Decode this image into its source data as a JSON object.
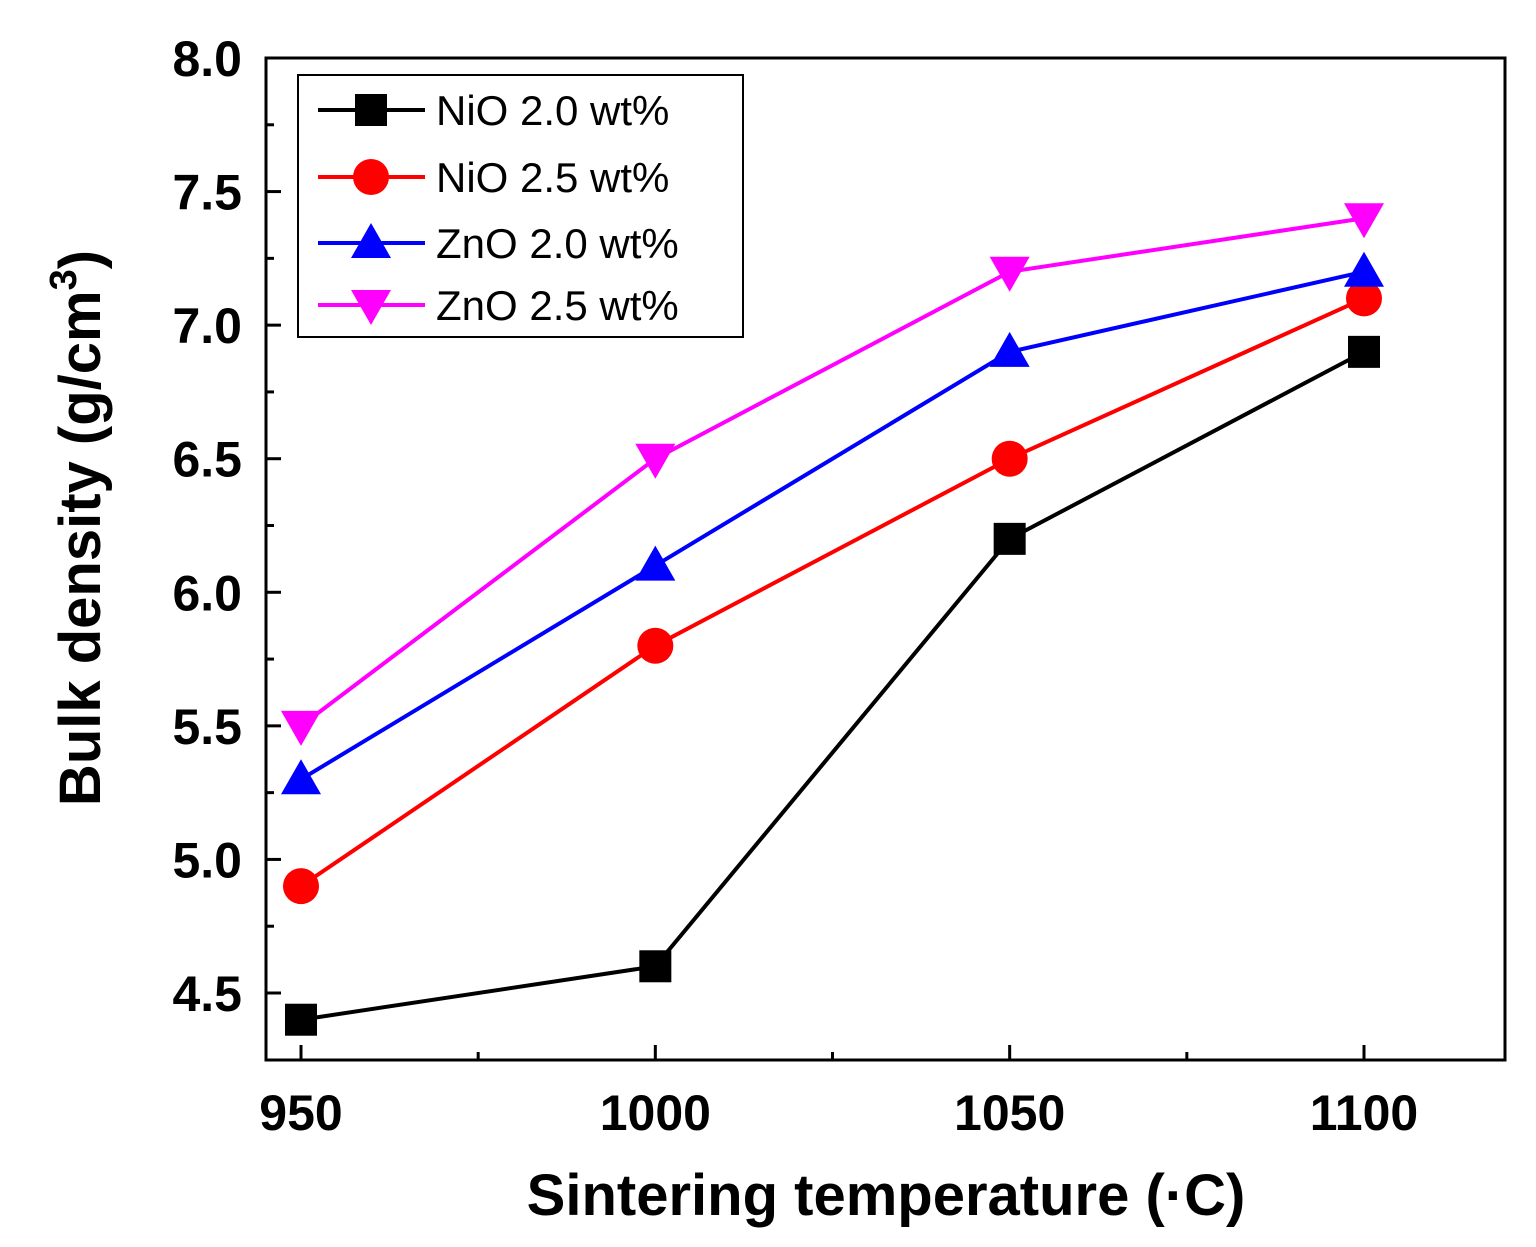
{
  "chart_data": {
    "type": "line",
    "title": "",
    "xlabel": "Sintering temperature (·C)",
    "ylabel_main": "Bulk density (g/cm",
    "ylabel_sup": "3",
    "ylabel_close": ")",
    "x": [
      950,
      1000,
      1050,
      1100
    ],
    "xlim": [
      945,
      1120
    ],
    "ylim": [
      4.25,
      8.0
    ],
    "xticks": [
      950,
      1000,
      1050,
      1100
    ],
    "xtick_labels": [
      "950",
      "1000",
      "1050",
      "1100"
    ],
    "xticks_minor": [
      975,
      1025,
      1075
    ],
    "yticks": [
      4.5,
      5.0,
      5.5,
      6.0,
      6.5,
      7.0,
      7.5,
      8.0
    ],
    "ytick_labels": [
      "4.5",
      "5.0",
      "5.5",
      "6.0",
      "6.5",
      "7.0",
      "7.5",
      "8.0"
    ],
    "yticks_minor": [
      4.75,
      5.25,
      5.75,
      6.25,
      6.75,
      7.25,
      7.75
    ],
    "grid": false,
    "legend_position": "top-left",
    "series": [
      {
        "name": "NiO 2.0 wt%",
        "color": "#000000",
        "marker": "square",
        "values": [
          4.4,
          4.6,
          6.2,
          6.9
        ]
      },
      {
        "name": "NiO 2.5 wt%",
        "color": "#ff0000",
        "marker": "circle",
        "values": [
          4.9,
          5.8,
          6.5,
          7.1
        ]
      },
      {
        "name": "ZnO 2.0 wt%",
        "color": "#0000ff",
        "marker": "triangle-up",
        "values": [
          5.3,
          6.1,
          6.9,
          7.2
        ]
      },
      {
        "name": "ZnO 2.5 wt%",
        "color": "#ff00ff",
        "marker": "triangle-down",
        "values": [
          5.5,
          6.5,
          7.2,
          7.4
        ]
      }
    ]
  }
}
